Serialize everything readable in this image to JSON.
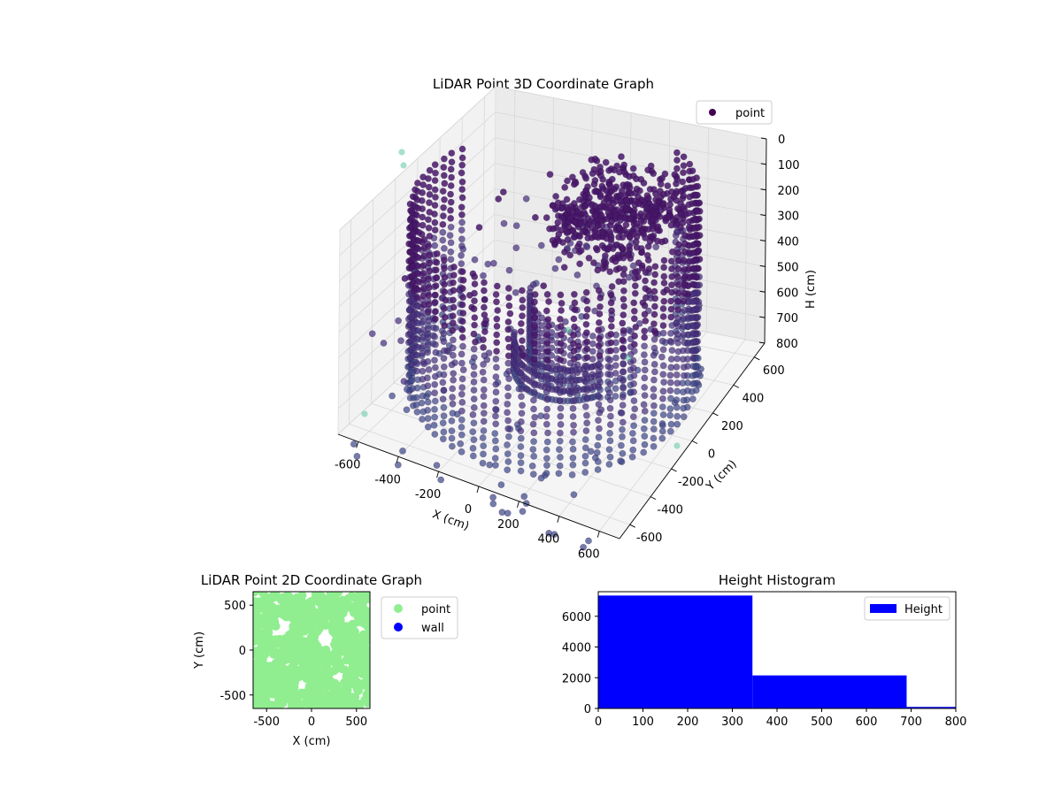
{
  "chart_data": [
    {
      "type": "scatter",
      "projection": "3d",
      "title": "LiDAR Point 3D Coordinate Graph",
      "xlabel": "X (cm)",
      "ylabel": "Y (cm)",
      "zlabel": "H (cm)",
      "xlim": [
        -700,
        700
      ],
      "ylim": [
        -700,
        700
      ],
      "zlim": [
        800,
        0
      ],
      "xticks": [
        -600,
        -400,
        -200,
        0,
        200,
        400,
        600
      ],
      "yticks": [
        -600,
        -400,
        -200,
        0,
        200,
        400,
        600
      ],
      "zticks": [
        0,
        100,
        200,
        300,
        400,
        500,
        600,
        700,
        800
      ],
      "grid": true,
      "legend": {
        "position": "top-right",
        "entries": [
          {
            "label": "point",
            "color": "#440154"
          }
        ]
      },
      "colormap": "viridis",
      "series": [
        {
          "name": "point",
          "description_shapes": [
            "ring wall radius ~650 cm, heights 0-800",
            "dense object cluster near x=100,y=200,h=100-300",
            "scattered floor points"
          ]
        }
      ]
    },
    {
      "type": "scatter",
      "title": "LiDAR Point 2D Coordinate Graph",
      "xlabel": "X (cm)",
      "ylabel": "Y (cm)",
      "xlim": [
        -650,
        650
      ],
      "ylim": [
        -650,
        650
      ],
      "xticks": [
        -500,
        0,
        500
      ],
      "yticks": [
        -500,
        0,
        500
      ],
      "legend": {
        "position": "outside-right",
        "entries": [
          {
            "label": "point",
            "color": "#90ee90"
          },
          {
            "label": "wall",
            "color": "#0000ff"
          }
        ]
      }
    },
    {
      "type": "bar",
      "subtype": "histogram",
      "title": "Height Histogram",
      "xlabel": "",
      "ylabel": "",
      "xlim": [
        0,
        800
      ],
      "ylim": [
        0,
        7600
      ],
      "xticks": [
        0,
        100,
        200,
        300,
        400,
        500,
        600,
        700,
        800
      ],
      "yticks": [
        0,
        2000,
        4000,
        6000
      ],
      "bins": [
        {
          "from": 0,
          "to": 345,
          "count": 7350
        },
        {
          "from": 345,
          "to": 690,
          "count": 2150
        },
        {
          "from": 690,
          "to": 800,
          "count": 100
        }
      ],
      "color": "#0000ff",
      "legend": {
        "position": "top-right",
        "entries": [
          {
            "label": "Height",
            "color": "#0000ff"
          }
        ]
      }
    }
  ]
}
